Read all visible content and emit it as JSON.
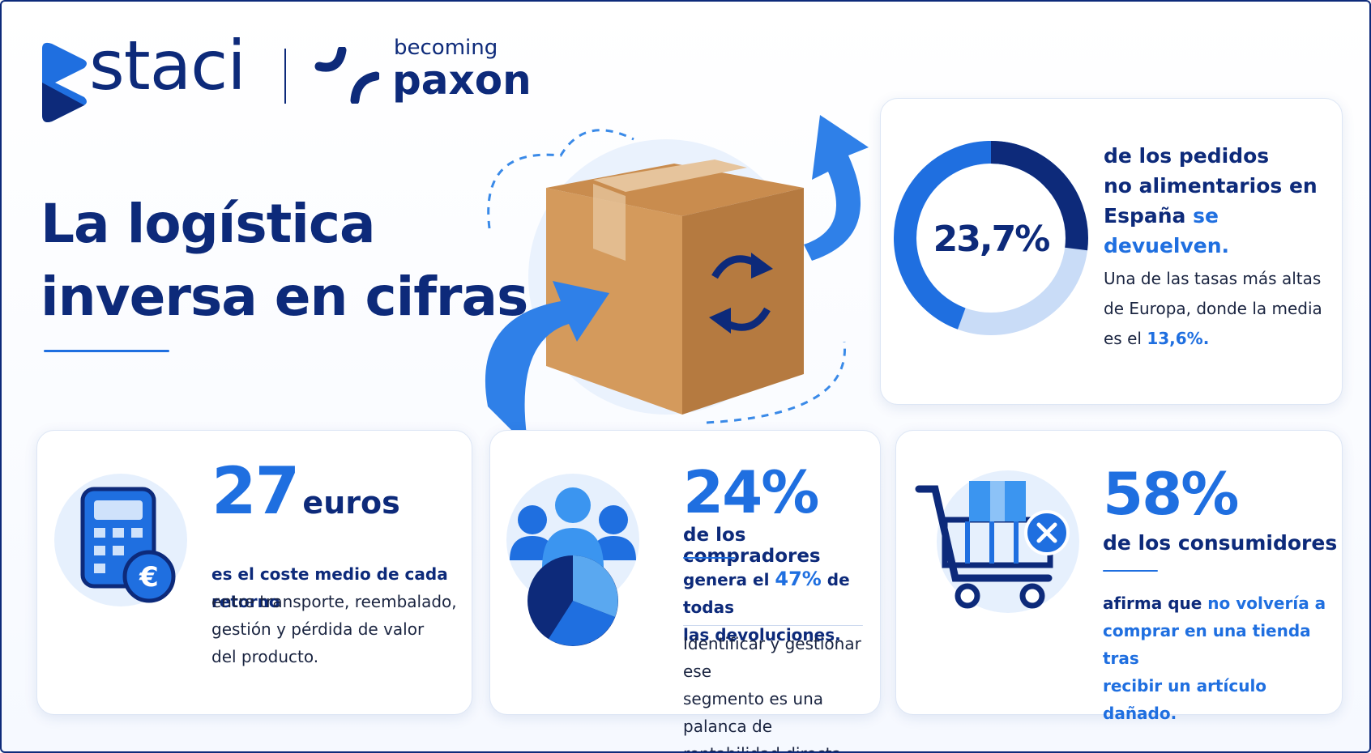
{
  "logo": {
    "brand": "staci",
    "tagline": "becoming",
    "partner": "paxon"
  },
  "title": [
    "La logística",
    "inversa en cifras"
  ],
  "returns_rate": {
    "value": "23,7%",
    "lines": [
      "de los pedidos",
      "no alimentarios en",
      "España "
    ],
    "highlight": "se devuelven.",
    "note": [
      "Una de las tasas más altas",
      "de Europa, donde la media",
      "es el "
    ],
    "note_highlight": "13,6%."
  },
  "cost_card": {
    "value": "27",
    "unit": "euros",
    "lead": "es el coste medio de cada retorno",
    "body": [
      "entre transporte, reembalado,",
      "gestión y pérdida de valor",
      "del producto."
    ]
  },
  "buyers_card": {
    "value": "24%",
    "subtitle": "de los compradores",
    "lead": [
      "genera el ",
      "47%",
      " de todas",
      "las devoluciones."
    ],
    "body": [
      "Identificar y gestionar ese",
      "segmento es una palanca de",
      "rentabilidad directa."
    ]
  },
  "consumers_card": {
    "value": "58%",
    "subtitle": "de los consumidores",
    "lead": "afirma que ",
    "highlight": [
      "no volvería a",
      "comprar en una tienda tras",
      "recibir un artículo dañado."
    ]
  }
}
